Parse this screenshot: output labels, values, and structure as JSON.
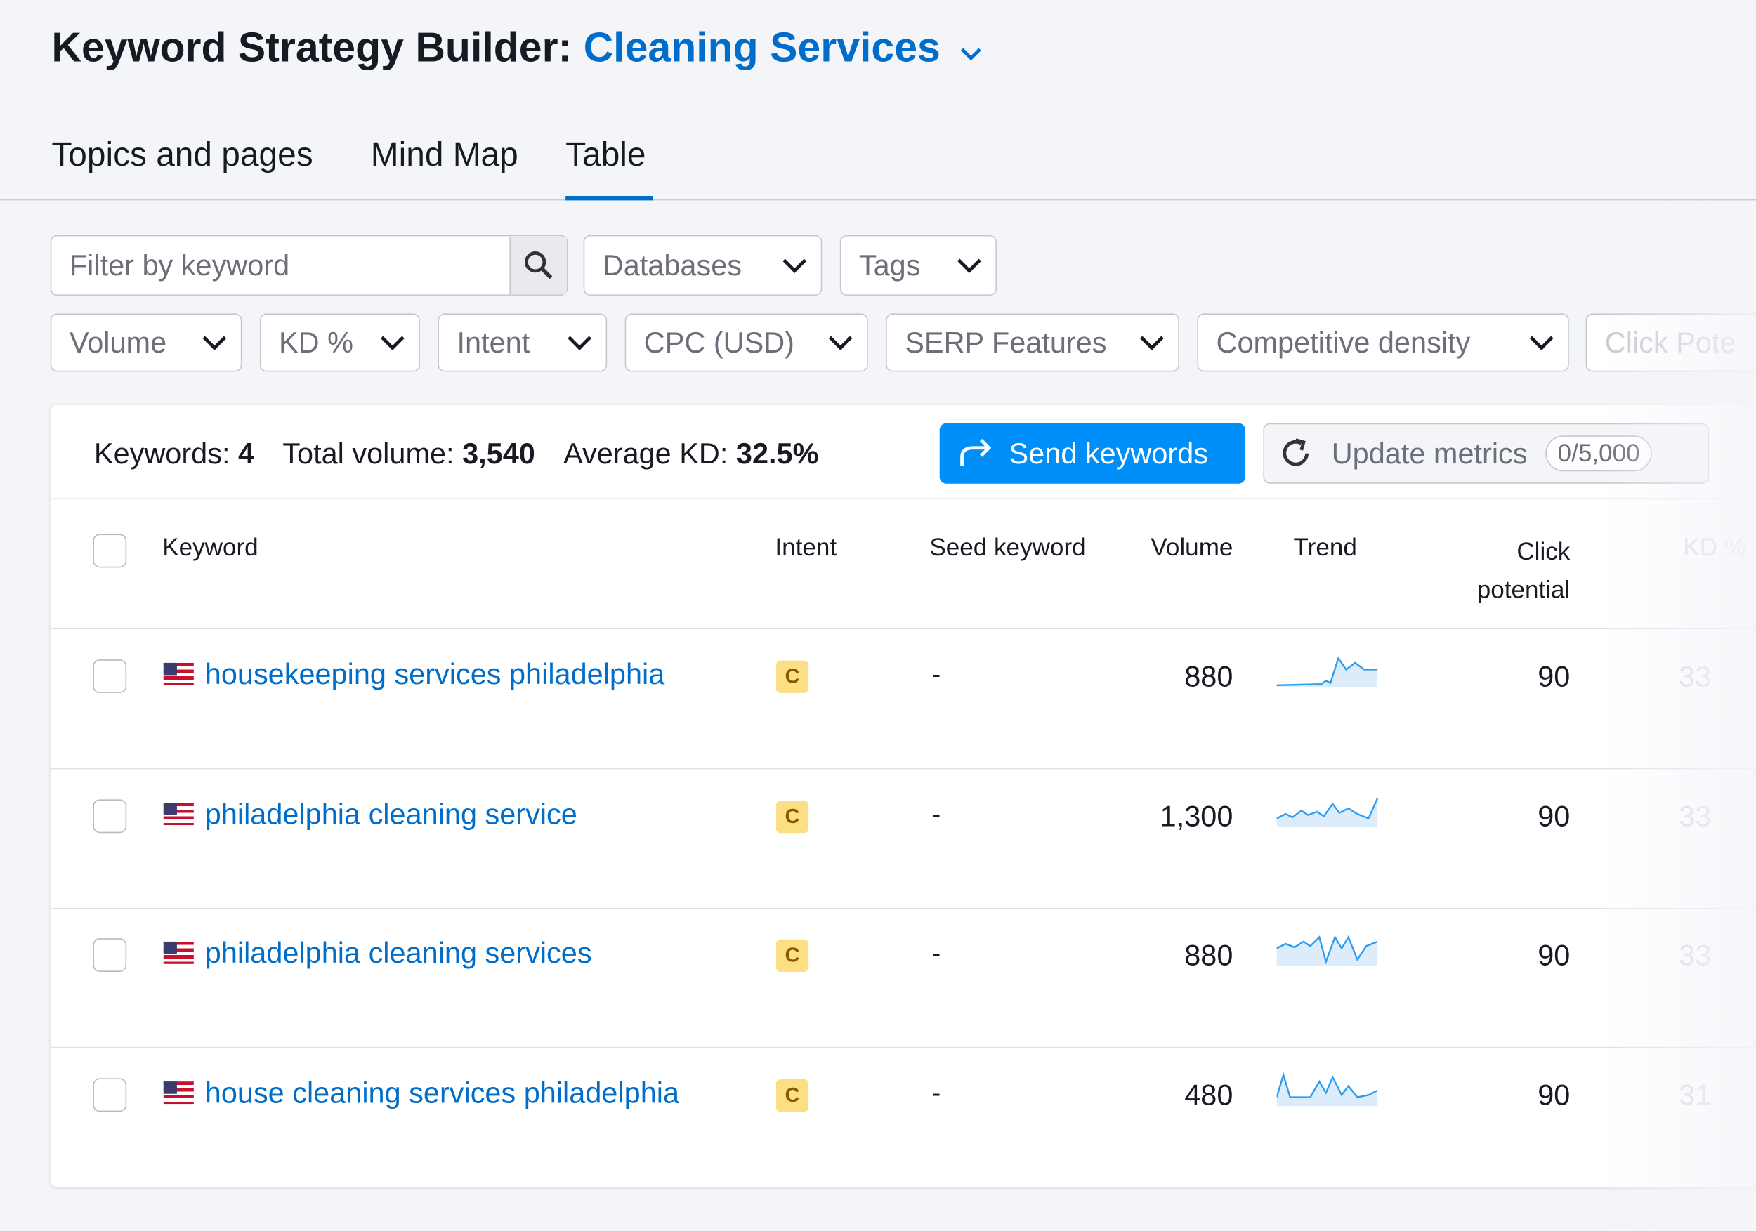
{
  "header": {
    "title": "Keyword Strategy Builder:",
    "project": "Cleaning Services"
  },
  "tabs": [
    "Topics and pages",
    "Mind Map",
    "Table"
  ],
  "search_placeholder": "Filter by keyword",
  "dropdowns_row1": [
    "Databases",
    "Tags"
  ],
  "filters": [
    "Volume",
    "KD %",
    "Intent",
    "CPC (USD)",
    "SERP Features",
    "Competitive density",
    "Click Pote"
  ],
  "summary": {
    "keywords_label": "Keywords:",
    "keywords": "4",
    "volume_label": "Total volume:",
    "volume": "3,540",
    "kd_label": "Average KD:",
    "kd": "32.5%"
  },
  "buttons": {
    "send": "Send keywords",
    "update": "Update metrics",
    "quota": "0/5,000"
  },
  "table": {
    "headers": [
      "Keyword",
      "Intent",
      "Seed keyword",
      "Volume",
      "Trend",
      "Click potential",
      "KD %"
    ],
    "rows": [
      [
        "housekeeping services philadelphia",
        "C",
        "-",
        "880",
        "90",
        "33"
      ],
      [
        "philadelphia cleaning service",
        "C",
        "-",
        "1,300",
        "90",
        "33"
      ],
      [
        "philadelphia cleaning services",
        "C",
        "-",
        "880",
        "90",
        "33"
      ],
      [
        "house cleaning services philadelphia",
        "C",
        "-",
        "480",
        "90",
        "31"
      ]
    ]
  }
}
